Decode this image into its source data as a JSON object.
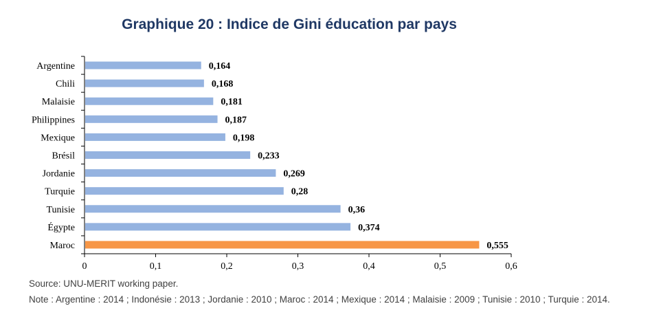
{
  "title": "Graphique 20 : Indice de Gini éducation par pays",
  "source": "Source: UNU-MERIT working paper.",
  "note": "Note : Argentine : 2014 ; Indonésie : 2013 ; Jordanie : 2010 ; Maroc : 2014 ; Mexique : 2014 ; Malaisie : 2009 ; Tunisie : 2010 ; Turquie : 2014.",
  "colors": {
    "default_bar": "#95b3e0",
    "highlight_bar": "#f79646",
    "axis": "#000000"
  },
  "chart_data": {
    "type": "bar",
    "orientation": "horizontal",
    "title": "Graphique 20 : Indice de Gini éducation par pays",
    "categories": [
      "Argentine",
      "Chili",
      "Malaisie",
      "Philippines",
      "Mexique",
      "Brésil",
      "Jordanie",
      "Turquie",
      "Tunisie",
      "Égypte",
      "Maroc"
    ],
    "values": [
      0.164,
      0.168,
      0.181,
      0.187,
      0.198,
      0.233,
      0.269,
      0.28,
      0.36,
      0.374,
      0.555
    ],
    "value_labels": [
      "0,164",
      "0,168",
      "0,181",
      "0,187",
      "0,198",
      "0,233",
      "0,269",
      "0,28",
      "0,36",
      "0,374",
      "0,555"
    ],
    "highlight": "Maroc",
    "xlim": [
      0,
      0.6
    ],
    "xticks": [
      0,
      0.1,
      0.2,
      0.3,
      0.4,
      0.5,
      0.6
    ],
    "xtick_labels": [
      "0",
      "0,1",
      "0,2",
      "0,3",
      "0,4",
      "0,5",
      "0,6"
    ],
    "xlabel": "",
    "ylabel": "",
    "grid": false,
    "legend": "none"
  }
}
